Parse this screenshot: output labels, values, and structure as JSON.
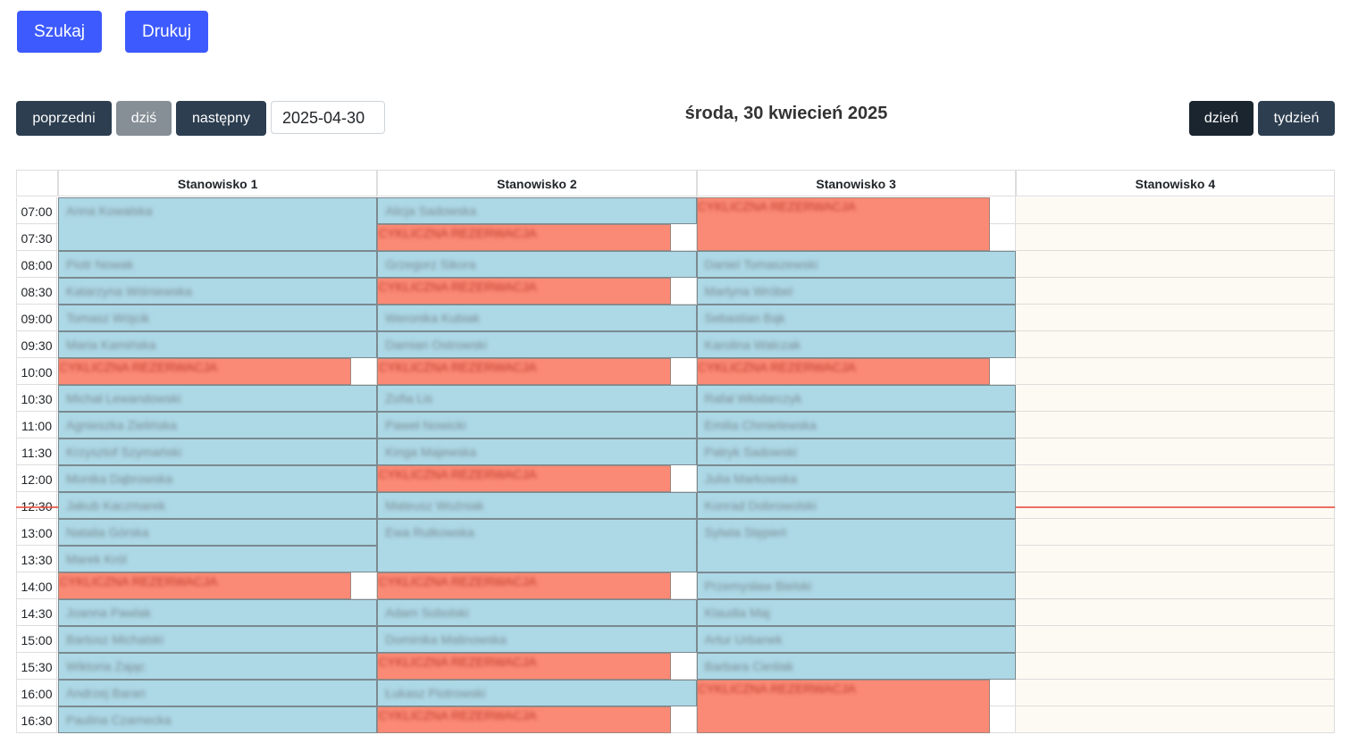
{
  "toolbar": {
    "search": "Szukaj",
    "print": "Drukuj",
    "prev": "poprzedni",
    "today": "dziś",
    "next": "następny",
    "date": "2025-04-30",
    "title": "środa, 30 kwiecień 2025",
    "day": "dzień",
    "week": "tydzień"
  },
  "calendar": {
    "times": [
      "07:00",
      "07:30",
      "08:00",
      "08:30",
      "09:00",
      "09:30",
      "10:00",
      "10:30",
      "11:00",
      "11:30",
      "12:00",
      "12:30",
      "13:00",
      "13:30",
      "14:00",
      "14:30",
      "15:00",
      "15:30",
      "16:00",
      "16:30"
    ],
    "now": "12:47",
    "columns": [
      {
        "name": "Stanowisko 1",
        "events": [
          {
            "time": "07:00",
            "minutes": 60,
            "label": "Anna Kowalska",
            "kind": "booking"
          },
          {
            "time": "08:00",
            "minutes": 30,
            "label": "Piotr Nowak",
            "kind": "booking"
          },
          {
            "time": "08:30",
            "minutes": 30,
            "label": "Katarzyna Wiśniewska",
            "kind": "booking"
          },
          {
            "time": "09:00",
            "minutes": 30,
            "label": "Tomasz Wójcik",
            "kind": "booking"
          },
          {
            "time": "09:30",
            "minutes": 30,
            "label": "Maria Kamińska",
            "kind": "booking"
          },
          {
            "time": "10:00",
            "minutes": 30,
            "label": "CYKLICZNA REZERWACJA",
            "kind": "cyclic"
          },
          {
            "time": "10:30",
            "minutes": 30,
            "label": "Michał Lewandowski",
            "kind": "booking"
          },
          {
            "time": "11:00",
            "minutes": 30,
            "label": "Agnieszka Zielińska",
            "kind": "booking"
          },
          {
            "time": "11:30",
            "minutes": 30,
            "label": "Krzysztof Szymański",
            "kind": "booking"
          },
          {
            "time": "12:00",
            "minutes": 30,
            "label": "Monika Dąbrowska",
            "kind": "booking"
          },
          {
            "time": "12:30",
            "minutes": 30,
            "label": "Jakub Kaczmarek",
            "kind": "booking"
          },
          {
            "time": "13:00",
            "minutes": 30,
            "label": "Natalia Górska",
            "kind": "booking"
          },
          {
            "time": "13:30",
            "minutes": 30,
            "label": "Marek Król",
            "kind": "booking"
          },
          {
            "time": "14:00",
            "minutes": 30,
            "label": "CYKLICZNA REZERWACJA",
            "kind": "cyclic"
          },
          {
            "time": "14:30",
            "minutes": 30,
            "label": "Joanna Pawlak",
            "kind": "booking"
          },
          {
            "time": "15:00",
            "minutes": 30,
            "label": "Bartosz Michalski",
            "kind": "booking"
          },
          {
            "time": "15:30",
            "minutes": 30,
            "label": "Wiktoria Zając",
            "kind": "booking"
          },
          {
            "time": "16:00",
            "minutes": 30,
            "label": "Andrzej Baran",
            "kind": "booking"
          },
          {
            "time": "16:30",
            "minutes": 30,
            "label": "Paulina Czarnecka",
            "kind": "booking"
          }
        ]
      },
      {
        "name": "Stanowisko 2",
        "events": [
          {
            "time": "07:00",
            "minutes": 30,
            "label": "Alicja Sadowska",
            "kind": "booking"
          },
          {
            "time": "07:30",
            "minutes": 30,
            "label": "CYKLICZNA REZERWACJA",
            "kind": "cyclic"
          },
          {
            "time": "08:00",
            "minutes": 30,
            "label": "Grzegorz Sikora",
            "kind": "booking"
          },
          {
            "time": "08:30",
            "minutes": 30,
            "label": "CYKLICZNA REZERWACJA",
            "kind": "cyclic"
          },
          {
            "time": "09:00",
            "minutes": 30,
            "label": "Weronika Kubiak",
            "kind": "booking"
          },
          {
            "time": "09:30",
            "minutes": 30,
            "label": "Damian Ostrowski",
            "kind": "booking"
          },
          {
            "time": "10:00",
            "minutes": 30,
            "label": "CYKLICZNA REZERWACJA",
            "kind": "cyclic"
          },
          {
            "time": "10:30",
            "minutes": 30,
            "label": "Zofia Lis",
            "kind": "booking"
          },
          {
            "time": "11:00",
            "minutes": 30,
            "label": "Paweł Nowicki",
            "kind": "booking"
          },
          {
            "time": "11:30",
            "minutes": 30,
            "label": "Kinga Majewska",
            "kind": "booking"
          },
          {
            "time": "12:00",
            "minutes": 30,
            "label": "CYKLICZNA REZERWACJA",
            "kind": "cyclic"
          },
          {
            "time": "12:30",
            "minutes": 30,
            "label": "Mateusz Woźniak",
            "kind": "booking"
          },
          {
            "time": "13:00",
            "minutes": 60,
            "label": "Ewa Rutkowska",
            "kind": "booking"
          },
          {
            "time": "14:00",
            "minutes": 30,
            "label": "CYKLICZNA REZERWACJA",
            "kind": "cyclic"
          },
          {
            "time": "14:30",
            "minutes": 30,
            "label": "Adam Sobolski",
            "kind": "booking"
          },
          {
            "time": "15:00",
            "minutes": 30,
            "label": "Dominika Malinowska",
            "kind": "booking"
          },
          {
            "time": "15:30",
            "minutes": 30,
            "label": "CYKLICZNA REZERWACJA",
            "kind": "cyclic"
          },
          {
            "time": "16:00",
            "minutes": 30,
            "label": "Łukasz Piotrowski",
            "kind": "booking"
          },
          {
            "time": "16:30",
            "minutes": 30,
            "label": "CYKLICZNA REZERWACJA",
            "kind": "cyclic"
          }
        ]
      },
      {
        "name": "Stanowisko 3",
        "events": [
          {
            "time": "07:00",
            "minutes": 60,
            "label": "CYKLICZNA REZERWACJA",
            "kind": "cyclic"
          },
          {
            "time": "08:00",
            "minutes": 30,
            "label": "Daniel Tomaszewski",
            "kind": "booking"
          },
          {
            "time": "08:30",
            "minutes": 30,
            "label": "Martyna Wróbel",
            "kind": "booking"
          },
          {
            "time": "09:00",
            "minutes": 30,
            "label": "Sebastian Bąk",
            "kind": "booking"
          },
          {
            "time": "09:30",
            "minutes": 30,
            "label": "Karolina Walczak",
            "kind": "booking"
          },
          {
            "time": "10:00",
            "minutes": 30,
            "label": "CYKLICZNA REZERWACJA",
            "kind": "cyclic"
          },
          {
            "time": "10:30",
            "minutes": 30,
            "label": "Rafał Włodarczyk",
            "kind": "booking"
          },
          {
            "time": "11:00",
            "minutes": 30,
            "label": "Emilia Chmielewska",
            "kind": "booking"
          },
          {
            "time": "11:30",
            "minutes": 30,
            "label": "Patryk Sadowski",
            "kind": "booking"
          },
          {
            "time": "12:00",
            "minutes": 30,
            "label": "Julia Markowska",
            "kind": "booking"
          },
          {
            "time": "12:30",
            "minutes": 30,
            "label": "Konrad Dobrowolski",
            "kind": "booking"
          },
          {
            "time": "13:00",
            "minutes": 60,
            "label": "Sylwia Stępień",
            "kind": "booking"
          },
          {
            "time": "14:00",
            "minutes": 30,
            "label": "Przemysław Bielski",
            "kind": "booking"
          },
          {
            "time": "14:30",
            "minutes": 30,
            "label": "Klaudia Maj",
            "kind": "booking"
          },
          {
            "time": "15:00",
            "minutes": 30,
            "label": "Artur Urbanek",
            "kind": "booking"
          },
          {
            "time": "15:30",
            "minutes": 30,
            "label": "Barbara Cieślak",
            "kind": "booking"
          },
          {
            "time": "16:00",
            "minutes": 60,
            "label": "CYKLICZNA REZERWACJA",
            "kind": "cyclic"
          }
        ]
      },
      {
        "name": "Stanowisko 4",
        "events": []
      }
    ]
  }
}
